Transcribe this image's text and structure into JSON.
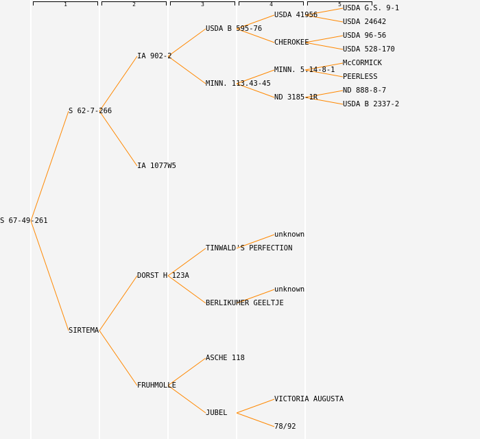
{
  "generations": [
    "1",
    "2",
    "3",
    "4",
    "5"
  ],
  "line_color": "#ff8800",
  "tree": {
    "name": "S 67-49-261",
    "children": [
      {
        "name": "S 62-7-266",
        "children": [
          {
            "name": "IA 902-2",
            "children": [
              {
                "name": "USDA B 595-76",
                "children": [
                  {
                    "name": "USDA 41956",
                    "children": [
                      {
                        "name": "USDA G.S. 9-1"
                      },
                      {
                        "name": "USDA 24642"
                      }
                    ]
                  },
                  {
                    "name": "CHEROKEE",
                    "children": [
                      {
                        "name": "USDA 96-56"
                      },
                      {
                        "name": "USDA 528-170"
                      }
                    ]
                  }
                ]
              },
              {
                "name": "MINN. 113.43-45",
                "children": [
                  {
                    "name": "MINN. 5.14-8-1",
                    "children": [
                      {
                        "name": "McCORMICK"
                      },
                      {
                        "name": "PEERLESS"
                      }
                    ]
                  },
                  {
                    "name": "ND 3185-1R",
                    "children": [
                      {
                        "name": "ND 888-8-7"
                      },
                      {
                        "name": "USDA B 2337-2"
                      }
                    ]
                  }
                ]
              }
            ]
          },
          {
            "name": "IA 1077W5"
          }
        ]
      },
      {
        "name": "SIRTEMA",
        "children": [
          {
            "name": "DORST H 123A",
            "children": [
              {
                "name": "TINWALD'S PERFECTION",
                "children": [
                  {
                    "name": "unknown"
                  },
                  null
                ]
              },
              {
                "name": "BERLIKUMER GEELTJE",
                "children": [
                  {
                    "name": "unknown"
                  },
                  null
                ]
              }
            ]
          },
          {
            "name": "FRUHMOLLE",
            "children": [
              {
                "name": "ASCHE 118"
              },
              {
                "name": "JUBEL",
                "children": [
                  {
                    "name": "VICTORIA AUGUSTA"
                  },
                  {
                    "name": "78/92"
                  }
                ]
              }
            ]
          }
        ]
      }
    ]
  }
}
